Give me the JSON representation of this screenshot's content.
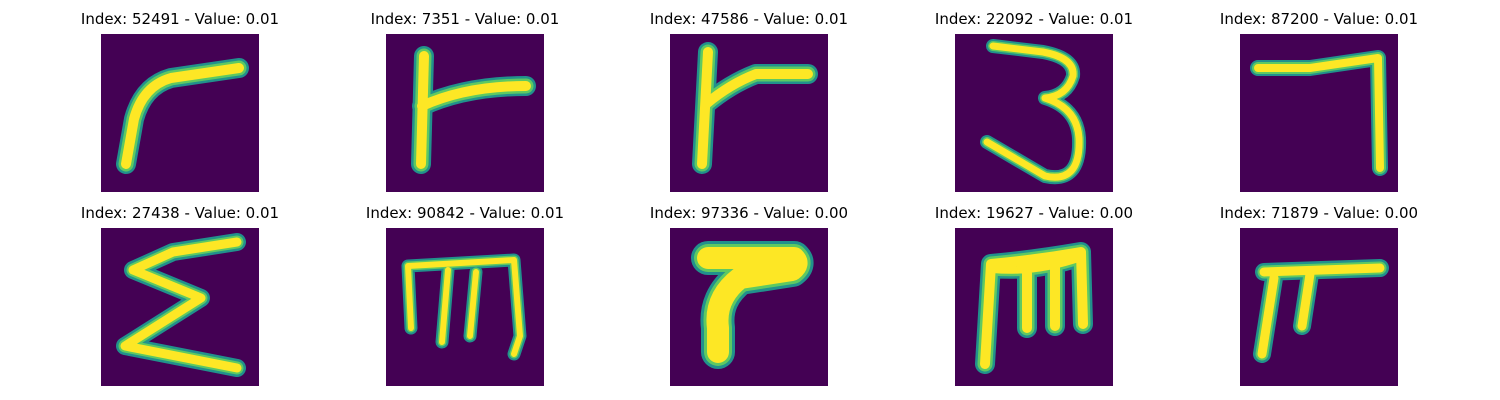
{
  "colors": {
    "background": "#440154",
    "stroke_outer": "#21918c",
    "stroke_mid": "#5ec962",
    "stroke_inner": "#fde725"
  },
  "panels": [
    {
      "title": "Index: 52491 - Value: 0.01",
      "glyph": "r-like character (index 52491)"
    },
    {
      "title": "Index: 7351 - Value: 0.01",
      "glyph": "r-like character (index 7351)"
    },
    {
      "title": "Index: 47586 - Value: 0.01",
      "glyph": "r-like character (index 47586)"
    },
    {
      "title": "Index: 22092 - Value: 0.01",
      "glyph": "3-like character"
    },
    {
      "title": "Index: 87200 - Value: 0.01",
      "glyph": "7-like character"
    },
    {
      "title": "Index: 27438 - Value: 0.01",
      "glyph": "sigma-like character"
    },
    {
      "title": "Index: 90842 - Value: 0.01",
      "glyph": "m-like character (index 90842)"
    },
    {
      "title": "Index: 97336 - Value: 0.00",
      "glyph": "thick r-like character"
    },
    {
      "title": "Index: 19627 - Value: 0.00",
      "glyph": "m-like character (index 19627)"
    },
    {
      "title": "Index: 71879 - Value: 0.00",
      "glyph": "pi-like character"
    }
  ]
}
